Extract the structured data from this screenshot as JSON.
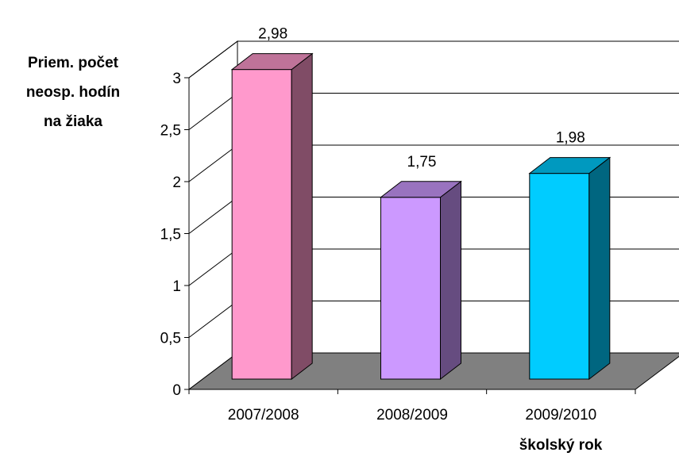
{
  "chart_data": {
    "type": "bar",
    "categories": [
      "2007/2008",
      "2008/2009",
      "2009/2010"
    ],
    "values": [
      2.98,
      1.75,
      1.98
    ],
    "data_labels": [
      "2,98",
      "1,75",
      "1,98"
    ],
    "ylabel_lines": [
      "Priem. počet",
      "neosp. hodín",
      "na žiaka"
    ],
    "xlabel": "školský rok",
    "ylim": [
      0,
      3
    ],
    "yticks": [
      0,
      0.5,
      1,
      1.5,
      2,
      2.5,
      3
    ],
    "ytick_labels": [
      "0",
      "0,5",
      "1",
      "1,5",
      "2",
      "2,5",
      "3"
    ],
    "bar_colors": [
      {
        "front": "#FF99CC",
        "side": "#804C66",
        "top": "#BF7399"
      },
      {
        "front": "#CC99FF",
        "side": "#664C80",
        "top": "#9973BF"
      },
      {
        "front": "#00CCFF",
        "side": "#006680",
        "top": "#0099BF"
      }
    ],
    "floor_color": "#808080",
    "grid": true,
    "style": "3d"
  }
}
